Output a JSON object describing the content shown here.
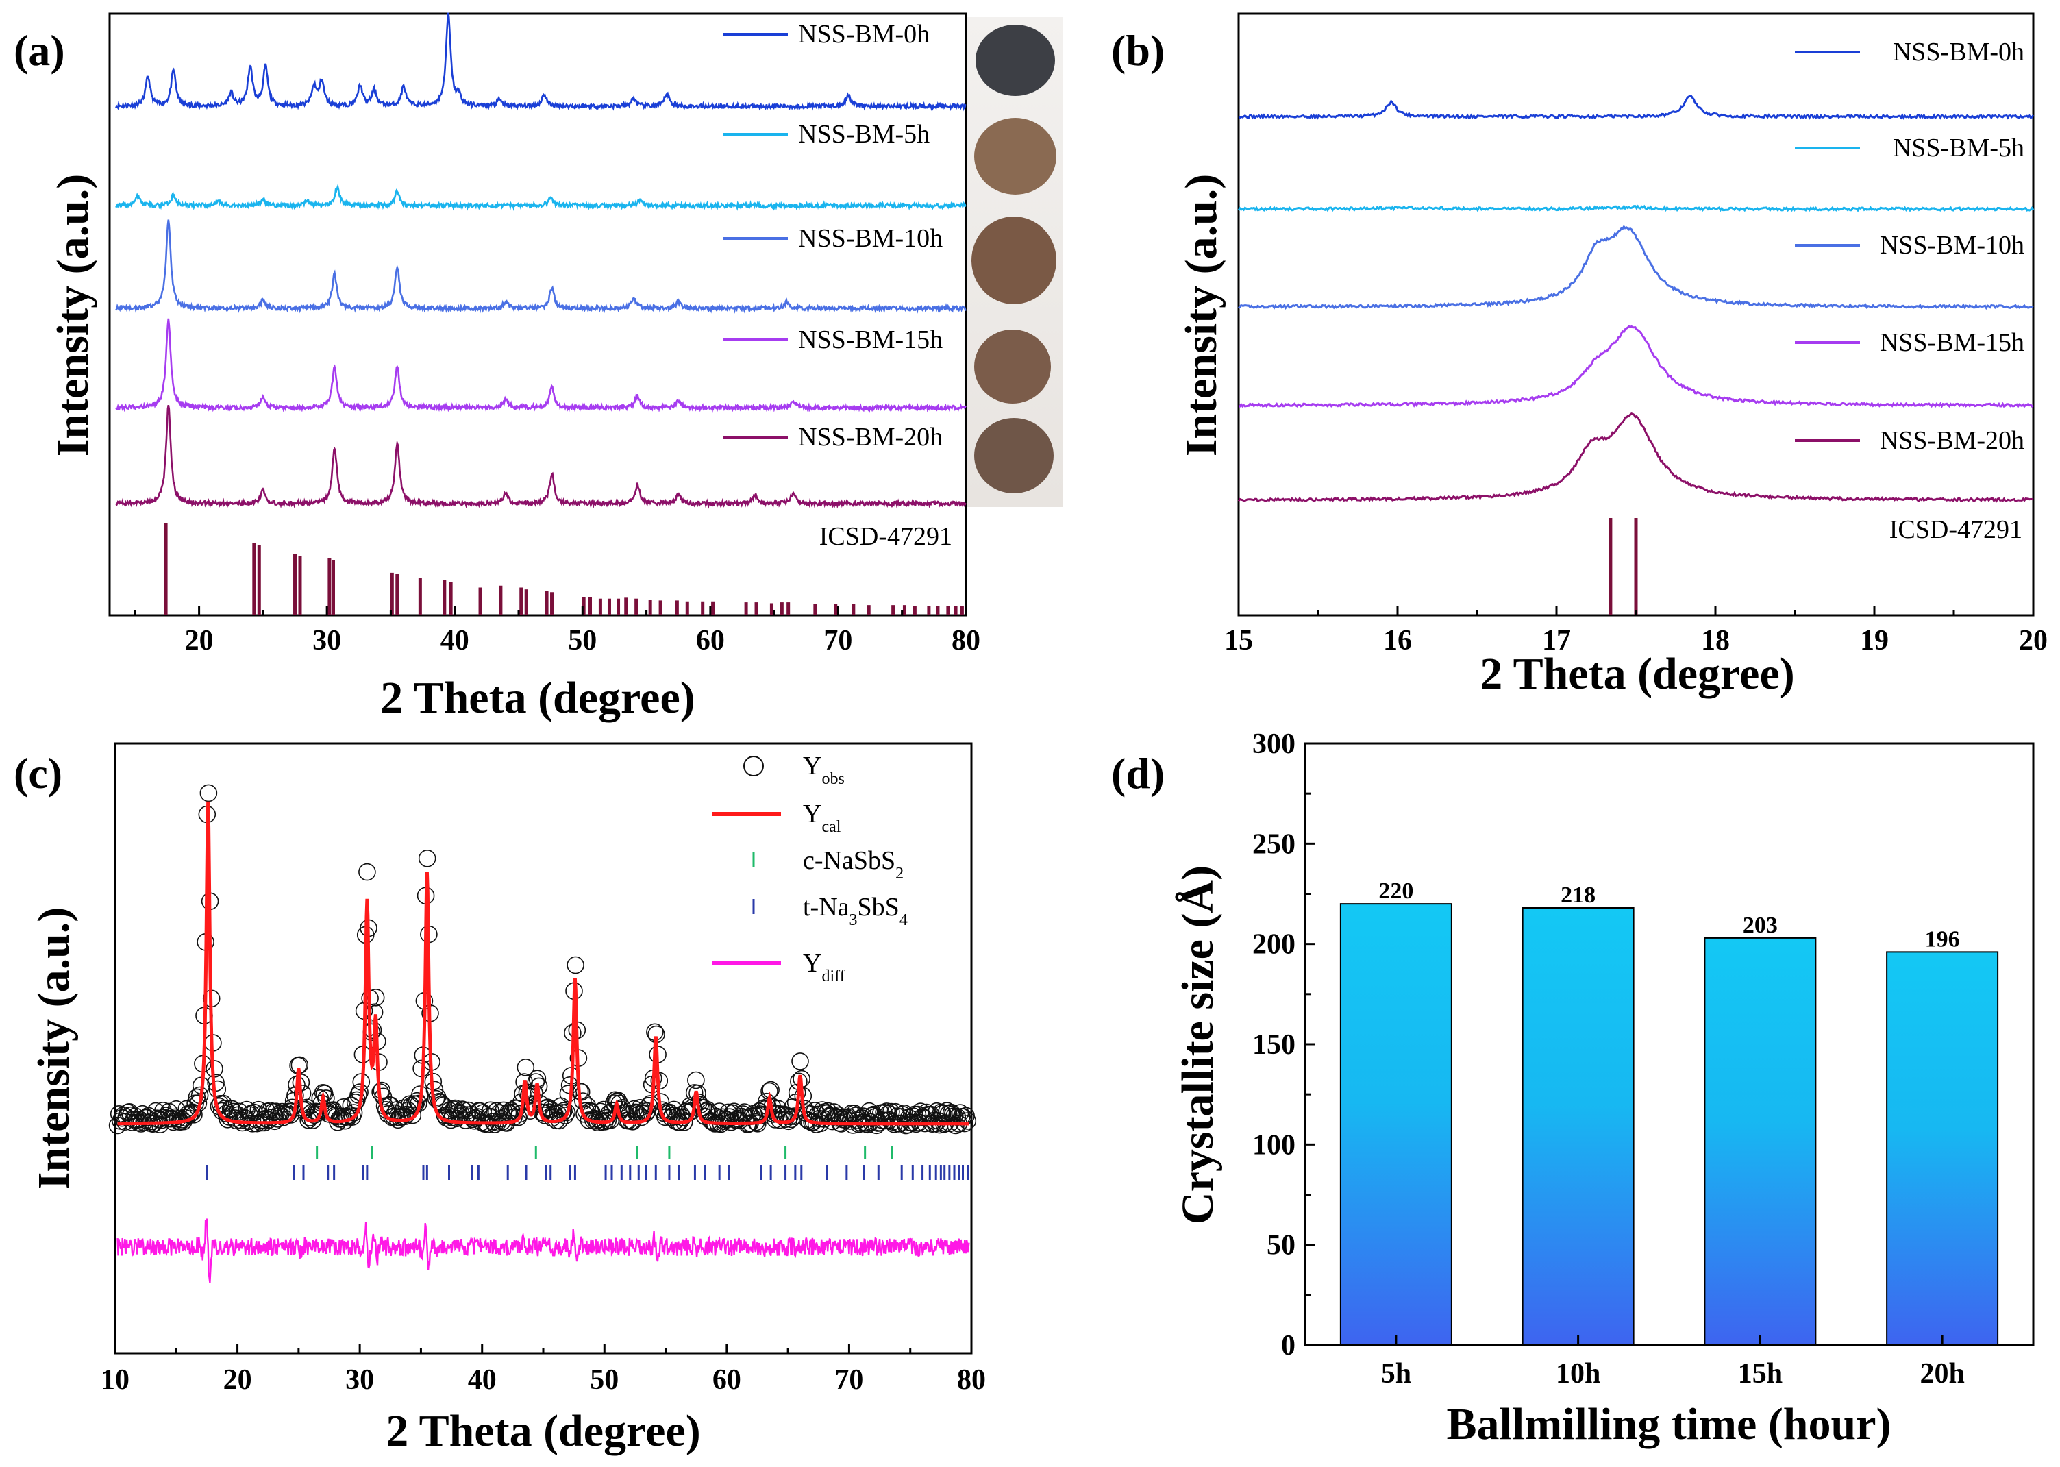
{
  "chart_data": [
    {
      "id": "a",
      "panel_label": "(a)",
      "type": "line",
      "title": "",
      "xlabel": "2 Theta (degree)",
      "ylabel": "Intensity (a.u.)",
      "xlim": [
        13,
        80
      ],
      "xticks": [
        "20",
        "30",
        "40",
        "50",
        "60",
        "70",
        "80"
      ],
      "xtick_values": [
        20,
        30,
        40,
        50,
        60,
        70,
        80
      ],
      "series": [
        {
          "name": "NSS-BM-0h",
          "color": "#1a3fd6",
          "peaks": [
            [
              16,
              0.45
            ],
            [
              18,
              0.55
            ],
            [
              22.5,
              0.2
            ],
            [
              24,
              0.6
            ],
            [
              25.2,
              0.6
            ],
            [
              29,
              0.3
            ],
            [
              29.6,
              0.38
            ],
            [
              32.6,
              0.32
            ],
            [
              33.7,
              0.25
            ],
            [
              36,
              0.3
            ],
            [
              39.5,
              1.4
            ],
            [
              40.3,
              0.15
            ],
            [
              43.5,
              0.1
            ],
            [
              47,
              0.18
            ],
            [
              54,
              0.12
            ],
            [
              56.6,
              0.2
            ],
            [
              70.8,
              0.18
            ]
          ]
        },
        {
          "name": "NSS-BM-5h",
          "color": "#1ab4ee",
          "peaks": [
            [
              15.2,
              0.18
            ],
            [
              18,
              0.2
            ],
            [
              21.5,
              0.1
            ],
            [
              25,
              0.12
            ],
            [
              28.5,
              0.1
            ],
            [
              30.8,
              0.35
            ],
            [
              35.5,
              0.28
            ],
            [
              47.5,
              0.15
            ],
            [
              54.5,
              0.1
            ]
          ]
        },
        {
          "name": "NSS-BM-10h",
          "color": "#4a70e4",
          "peaks": [
            [
              17.6,
              1.3
            ],
            [
              25,
              0.12
            ],
            [
              30.6,
              0.5
            ],
            [
              35.5,
              0.6
            ],
            [
              44,
              0.1
            ],
            [
              47.6,
              0.3
            ],
            [
              54,
              0.15
            ],
            [
              57.5,
              0.1
            ],
            [
              66,
              0.1
            ]
          ]
        },
        {
          "name": "NSS-BM-15h",
          "color": "#a63cf0",
          "peaks": [
            [
              17.6,
              1.3
            ],
            [
              25,
              0.15
            ],
            [
              30.6,
              0.6
            ],
            [
              35.5,
              0.6
            ],
            [
              44,
              0.12
            ],
            [
              47.6,
              0.3
            ],
            [
              54.3,
              0.18
            ],
            [
              57.5,
              0.1
            ],
            [
              66.5,
              0.1
            ]
          ]
        },
        {
          "name": "NSS-BM-20h",
          "color": "#8c1068",
          "peaks": [
            [
              17.6,
              1.3
            ],
            [
              25,
              0.18
            ],
            [
              30.6,
              0.75
            ],
            [
              35.5,
              0.8
            ],
            [
              44,
              0.14
            ],
            [
              47.6,
              0.4
            ],
            [
              54.3,
              0.25
            ],
            [
              57.5,
              0.12
            ],
            [
              63.5,
              0.1
            ],
            [
              66.5,
              0.15
            ]
          ]
        }
      ],
      "reference": {
        "name": "ICSD-47291",
        "color": "#7a0f3a",
        "lines": [
          [
            17.4,
            1.0
          ],
          [
            24.3,
            0.78
          ],
          [
            24.7,
            0.76
          ],
          [
            27.5,
            0.66
          ],
          [
            27.9,
            0.64
          ],
          [
            30.2,
            0.62
          ],
          [
            30.5,
            0.6
          ],
          [
            35.1,
            0.46
          ],
          [
            35.5,
            0.45
          ],
          [
            37.3,
            0.4
          ],
          [
            39.2,
            0.38
          ],
          [
            39.7,
            0.36
          ],
          [
            42,
            0.3
          ],
          [
            43.6,
            0.32
          ],
          [
            45.2,
            0.3
          ],
          [
            45.6,
            0.28
          ],
          [
            47.2,
            0.26
          ],
          [
            47.6,
            0.25
          ],
          [
            50.1,
            0.2
          ],
          [
            50.6,
            0.2
          ],
          [
            51.4,
            0.18
          ],
          [
            52.1,
            0.18
          ],
          [
            52.8,
            0.18
          ],
          [
            53.4,
            0.19
          ],
          [
            54.2,
            0.18
          ],
          [
            55.3,
            0.17
          ],
          [
            56.1,
            0.16
          ],
          [
            57.4,
            0.16
          ],
          [
            58.2,
            0.15
          ],
          [
            59.4,
            0.15
          ],
          [
            60.2,
            0.15
          ],
          [
            62.8,
            0.14
          ],
          [
            63.6,
            0.14
          ],
          [
            64.8,
            0.13
          ],
          [
            65.6,
            0.14
          ],
          [
            66.1,
            0.14
          ],
          [
            68.2,
            0.12
          ],
          [
            69.8,
            0.12
          ],
          [
            71.2,
            0.12
          ],
          [
            72.4,
            0.11
          ],
          [
            74.3,
            0.11
          ],
          [
            75.2,
            0.11
          ],
          [
            76,
            0.1
          ],
          [
            77.1,
            0.1
          ],
          [
            77.8,
            0.1
          ],
          [
            78.6,
            0.1
          ],
          [
            79.2,
            0.1
          ],
          [
            79.7,
            0.1
          ]
        ]
      },
      "has_photo_strip": true
    },
    {
      "id": "b",
      "panel_label": "(b)",
      "type": "line",
      "xlabel": "2 Theta (degree)",
      "ylabel": "Intensity (a.u.)",
      "xlim": [
        15,
        20
      ],
      "xticks": [
        "15",
        "16",
        "17",
        "18",
        "19",
        "20"
      ],
      "xtick_values": [
        15,
        16,
        17,
        18,
        19,
        20
      ],
      "series": [
        {
          "name": "NSS-BM-0h",
          "color": "#1a3fd6",
          "peaks": [
            [
              15.96,
              0.3,
              0.04
            ],
            [
              17.84,
              0.42,
              0.05
            ]
          ]
        },
        {
          "name": "NSS-BM-5h",
          "color": "#1ab4ee",
          "peaks": [
            [
              17.45,
              0.05,
              0.15
            ],
            [
              16.1,
              0.03,
              0.2
            ]
          ]
        },
        {
          "name": "NSS-BM-10h",
          "color": "#4a70e4",
          "peaks": [
            [
              17.45,
              1.0,
              0.16
            ],
            [
              17.25,
              0.5,
              0.1
            ]
          ]
        },
        {
          "name": "NSS-BM-15h",
          "color": "#a63cf0",
          "peaks": [
            [
              17.48,
              1.0,
              0.18
            ],
            [
              17.25,
              0.25,
              0.12
            ]
          ]
        },
        {
          "name": "NSS-BM-20h",
          "color": "#8c1068",
          "peaks": [
            [
              17.48,
              1.0,
              0.17
            ],
            [
              17.22,
              0.45,
              0.12
            ]
          ]
        }
      ],
      "reference": {
        "name": "ICSD-47291",
        "color": "#7a0f3a",
        "lines": [
          [
            17.34,
            1.0
          ],
          [
            17.5,
            1.0
          ]
        ]
      }
    },
    {
      "id": "c",
      "panel_label": "(c)",
      "type": "line",
      "xlabel": "2 Theta (degree)",
      "ylabel": "Intensity (a.u.)",
      "xlim": [
        10,
        80
      ],
      "xticks": [
        "10",
        "20",
        "30",
        "40",
        "50",
        "60",
        "70",
        "80"
      ],
      "xtick_values": [
        10,
        20,
        30,
        40,
        50,
        60,
        70,
        80
      ],
      "legend": [
        {
          "key": "obs",
          "label": "Y",
          "sub": "obs",
          "color": "#000000"
        },
        {
          "key": "cal",
          "label": "Y",
          "sub": "cal",
          "color": "#ff1a1a"
        },
        {
          "key": "c",
          "label": "c-NaSbS",
          "sub": "2",
          "color": "#1fba6a"
        },
        {
          "key": "t",
          "label": "t-Na",
          "sub": "3",
          "label2": "SbS",
          "sub2": "4",
          "color": "#2a3aa8"
        },
        {
          "key": "diff",
          "label": "Y",
          "sub": "diff",
          "color": "#ff18e6"
        }
      ],
      "peaks": [
        [
          17.6,
          1.0
        ],
        [
          25,
          0.17
        ],
        [
          27,
          0.08
        ],
        [
          30.6,
          0.68
        ],
        [
          31.3,
          0.3
        ],
        [
          35.5,
          0.78
        ],
        [
          43.5,
          0.13
        ],
        [
          44.5,
          0.12
        ],
        [
          47.6,
          0.45
        ],
        [
          51,
          0.06
        ],
        [
          54.2,
          0.27
        ],
        [
          57.5,
          0.1
        ],
        [
          63.5,
          0.08
        ],
        [
          66,
          0.15
        ]
      ],
      "c_ticks": [
        26.5,
        31,
        44.4,
        52.7,
        55.3,
        64.8,
        71.3,
        73.5
      ],
      "t_ticks": [
        17.5,
        24.6,
        25.4,
        27.4,
        27.9,
        30.3,
        30.6,
        35.2,
        35.5,
        37.3,
        39.2,
        39.7,
        42.1,
        43.6,
        45.2,
        45.6,
        47.2,
        47.6,
        50.1,
        50.6,
        51.4,
        52.1,
        52.8,
        53.4,
        54.2,
        55.3,
        56.1,
        57.4,
        58.2,
        59.4,
        60.2,
        62.8,
        63.6,
        64.8,
        65.6,
        66.1,
        68.2,
        69.8,
        71.2,
        72.4,
        74.3,
        75.2,
        76,
        76.6,
        77.1,
        77.5,
        77.8,
        78.2,
        78.6,
        79,
        79.3,
        79.7
      ]
    },
    {
      "id": "d",
      "panel_label": "(d)",
      "type": "bar",
      "xlabel": "Ballmilling time (hour)",
      "ylabel": "Crystallite size (Å)",
      "categories": [
        "5h",
        "10h",
        "15h",
        "20h"
      ],
      "values": [
        220,
        218,
        203,
        196
      ],
      "value_labels": [
        "220",
        "218",
        "203",
        "196"
      ],
      "ylim": [
        0,
        300
      ],
      "yticks": [
        "0",
        "50",
        "100",
        "150",
        "200",
        "250",
        "300"
      ],
      "ytick_values": [
        0,
        50,
        100,
        150,
        200,
        250,
        300
      ],
      "bar_gradient": [
        "#14c8f4",
        "#3e64f0"
      ]
    }
  ]
}
